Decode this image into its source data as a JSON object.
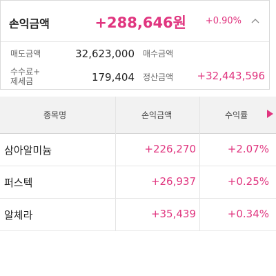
{
  "summary": {
    "title": "손익금액",
    "amount": "+288,646원",
    "rate": "+0.90%",
    "sell_label": "매도금액",
    "sell_value": "32,623,000",
    "buy_label": "매수금액",
    "buy_value": "",
    "fee_label_line1": "수수료+",
    "fee_label_line2": "제세금",
    "fee_value": "179,404",
    "settle_label": "정산금액",
    "settle_value": "+32,443,596",
    "accent_color": "#e0357f",
    "collapse_icon": "chevron-up-icon"
  },
  "table": {
    "headers": [
      "종목명",
      "손익금액",
      "수익률"
    ],
    "next_icon": "play-right-icon",
    "rows": [
      {
        "name": "삼아알미늄",
        "profit": "+226,270",
        "rate": "+2.07%"
      },
      {
        "name": "퍼스텍",
        "profit": "+26,937",
        "rate": "+0.25%"
      },
      {
        "name": "알체라",
        "profit": "+35,439",
        "rate": "+0.34%"
      }
    ]
  }
}
